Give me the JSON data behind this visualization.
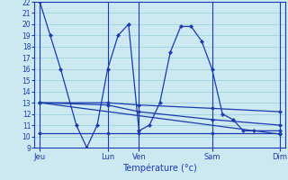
{
  "title": "",
  "xlabel": "Température (°c)",
  "background_color": "#cce8f0",
  "line_color": "#1a3ab0",
  "grid_color": "#99ccdd",
  "ylim": [
    9,
    22
  ],
  "yticks": [
    9,
    10,
    11,
    12,
    13,
    14,
    15,
    16,
    17,
    18,
    19,
    20,
    21,
    22
  ],
  "xlim": [
    0,
    24
  ],
  "x_tick_labels": [
    "Jeu",
    "Lun",
    "Ven",
    "Sam",
    "Dim"
  ],
  "x_tick_positions": [
    0.5,
    7,
    10,
    17,
    23.5
  ],
  "vlines": [
    0.5,
    7,
    10,
    17,
    23.5
  ],
  "lines": [
    {
      "x": [
        0.5,
        1.5,
        2.5,
        4.0,
        5.0,
        6.0,
        7.0,
        8.0,
        9.0,
        10.0,
        11.0,
        12.0,
        13.0,
        14.0,
        15.0,
        16.0,
        17.0,
        18.0,
        19.0,
        20.0,
        21.0,
        23.5
      ],
      "y": [
        22,
        19,
        16,
        11,
        9,
        11,
        16,
        19.0,
        20.0,
        10.5,
        11,
        13,
        17.5,
        19.8,
        19.8,
        18.5,
        16,
        12,
        11.5,
        10.5,
        10.5,
        10.5
      ]
    },
    {
      "x": [
        0.5,
        7,
        10,
        17,
        23.5
      ],
      "y": [
        13,
        13,
        12.8,
        12.5,
        12.2
      ]
    },
    {
      "x": [
        0.5,
        7,
        10,
        17,
        23.5
      ],
      "y": [
        13,
        12.8,
        12.2,
        11.5,
        11.0
      ]
    },
    {
      "x": [
        0.5,
        23.5
      ],
      "y": [
        13,
        10.2
      ]
    },
    {
      "x": [
        0.5,
        7,
        10,
        17,
        23.5
      ],
      "y": [
        10.3,
        10.3,
        10.3,
        10.3,
        10.3
      ]
    }
  ]
}
